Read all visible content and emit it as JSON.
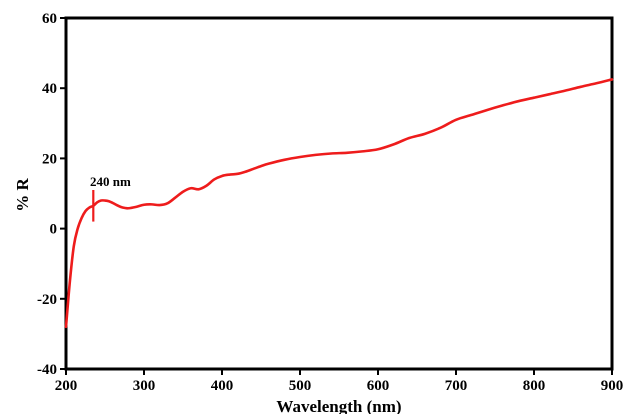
{
  "chart_data": {
    "type": "line",
    "title": "",
    "xlabel": "Wavelength (nm)",
    "ylabel": "% R",
    "xlim": [
      200,
      900
    ],
    "ylim": [
      -40,
      60
    ],
    "xticks": [
      200,
      300,
      400,
      500,
      600,
      700,
      800,
      900
    ],
    "yticks": [
      -40,
      -20,
      0,
      20,
      40,
      60
    ],
    "x_tick_labels": [
      "200",
      "300",
      "400",
      "500",
      "600",
      "700",
      "800",
      "900"
    ],
    "y_tick_labels": [
      "-40",
      "-20",
      "0",
      "20",
      "40",
      "60"
    ],
    "grid": false,
    "legend": "none",
    "series": [
      {
        "color": "#ee1c1c",
        "x": [
          200,
          205,
          210,
          215,
          220,
          225,
          230,
          235,
          240,
          245,
          250,
          255,
          260,
          265,
          270,
          275,
          280,
          290,
          300,
          310,
          320,
          330,
          340,
          350,
          360,
          370,
          380,
          390,
          400,
          410,
          420,
          430,
          440,
          450,
          460,
          480,
          500,
          520,
          540,
          560,
          580,
          600,
          620,
          640,
          660,
          680,
          700,
          720,
          740,
          760,
          780,
          800,
          820,
          840,
          860,
          880,
          900
        ],
        "y": [
          -28,
          -15,
          -5,
          0,
          3,
          5,
          6,
          6.5,
          7.5,
          8,
          8,
          7.8,
          7.3,
          6.7,
          6.2,
          5.9,
          5.8,
          6.2,
          6.8,
          6.9,
          6.7,
          7.2,
          8.8,
          10.5,
          11.5,
          11.2,
          12.2,
          14,
          15,
          15.4,
          15.6,
          16.2,
          17,
          17.8,
          18.5,
          19.6,
          20.4,
          21,
          21.4,
          21.6,
          22,
          22.6,
          24,
          25.8,
          27,
          28.7,
          31,
          32.4,
          33.8,
          35.1,
          36.3,
          37.3,
          38.3,
          39.3,
          40.4,
          41.4,
          42.5
        ]
      }
    ],
    "annotations": [
      {
        "text": "240 nm",
        "x": 235,
        "y_from": 2,
        "y_to": 11
      }
    ]
  }
}
